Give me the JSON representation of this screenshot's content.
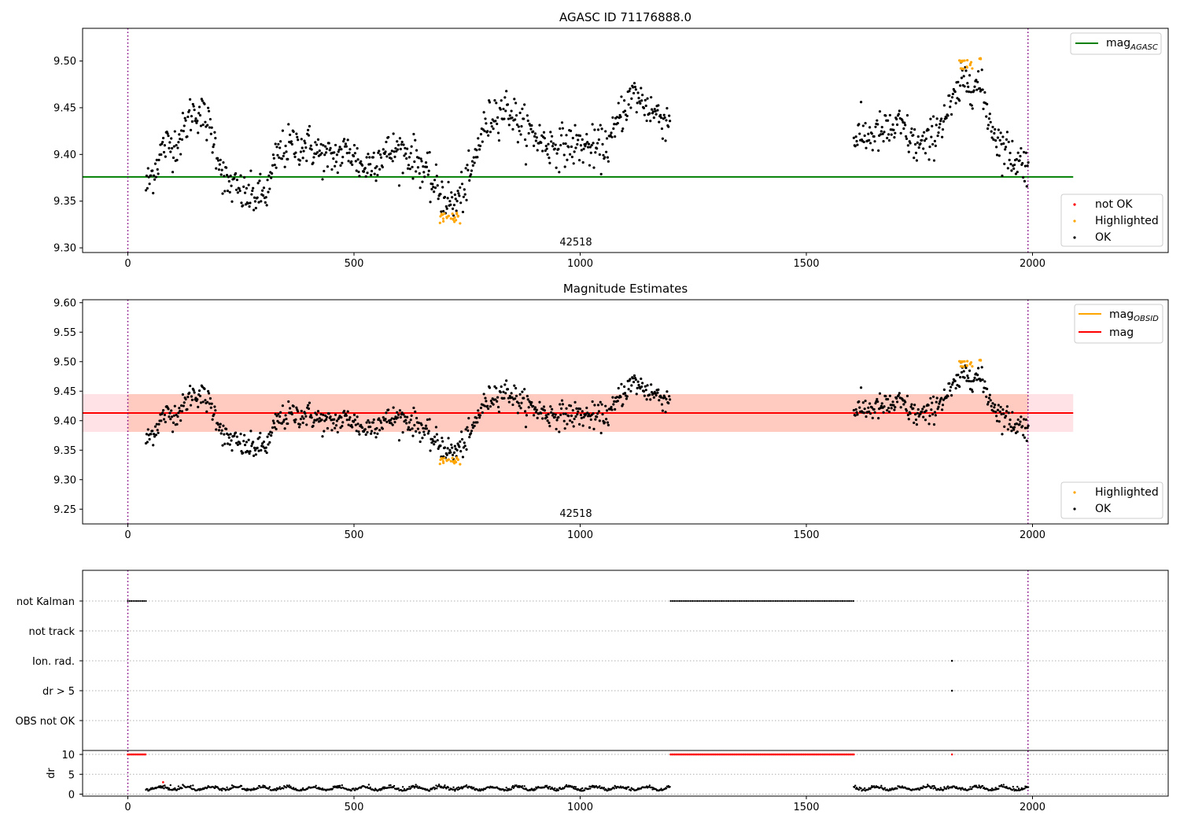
{
  "chart_data": [
    {
      "type": "scatter",
      "title": "AGASC ID 71176888.0",
      "xlim": [
        -100,
        2300
      ],
      "ylim": [
        9.295,
        9.535
      ],
      "xticks": [
        0,
        500,
        1000,
        1500,
        2000
      ],
      "yticks": [
        9.3,
        9.35,
        9.4,
        9.45,
        9.5
      ],
      "vlines": [
        0,
        1990
      ],
      "annotation": {
        "text": "42518",
        "x": 995,
        "y": 9.303
      },
      "hline": {
        "name": "mag",
        "subscript": "AGASC",
        "y": 9.376,
        "x": [
          -100,
          2090
        ],
        "color": "#008000"
      },
      "series": [
        {
          "name": "not OK",
          "color": "#ff0000",
          "points": []
        },
        {
          "name": "Highlighted",
          "color": "#ffa500",
          "ranges": [
            [
              690,
              735,
              9.325,
              9.338
            ],
            [
              1838,
              1870,
              9.49,
              9.507
            ],
            [
              1882,
              1886,
              9.502,
              9.504
            ]
          ]
        },
        {
          "name": "OK",
          "color": "#000000",
          "knots": [
            [
              40,
              9.365
            ],
            [
              55,
              9.38
            ],
            [
              80,
              9.41
            ],
            [
              100,
              9.41
            ],
            [
              120,
              9.42
            ],
            [
              140,
              9.445
            ],
            [
              160,
              9.445
            ],
            [
              180,
              9.43
            ],
            [
              200,
              9.4
            ],
            [
              215,
              9.37
            ],
            [
              235,
              9.365
            ],
            [
              260,
              9.355
            ],
            [
              290,
              9.355
            ],
            [
              310,
              9.36
            ],
            [
              330,
              9.4
            ],
            [
              360,
              9.41
            ],
            [
              400,
              9.41
            ],
            [
              440,
              9.395
            ],
            [
              470,
              9.4
            ],
            [
              490,
              9.405
            ],
            [
              520,
              9.385
            ],
            [
              560,
              9.4
            ],
            [
              600,
              9.405
            ],
            [
              640,
              9.395
            ],
            [
              670,
              9.37
            ],
            [
              690,
              9.36
            ],
            [
              720,
              9.345
            ],
            [
              740,
              9.36
            ],
            [
              760,
              9.38
            ],
            [
              780,
              9.42
            ],
            [
              810,
              9.445
            ],
            [
              840,
              9.45
            ],
            [
              870,
              9.43
            ],
            [
              900,
              9.42
            ],
            [
              930,
              9.41
            ],
            [
              960,
              9.41
            ],
            [
              1000,
              9.41
            ],
            [
              1040,
              9.405
            ],
            [
              1070,
              9.415
            ],
            [
              1090,
              9.445
            ],
            [
              1120,
              9.465
            ],
            [
              1150,
              9.45
            ],
            [
              1180,
              9.44
            ],
            [
              1200,
              9.435
            ]
          ],
          "knots2": [
            [
              1605,
              9.42
            ],
            [
              1640,
              9.42
            ],
            [
              1680,
              9.425
            ],
            [
              1710,
              9.43
            ],
            [
              1740,
              9.41
            ],
            [
              1770,
              9.41
            ],
            [
              1790,
              9.43
            ],
            [
              1820,
              9.45
            ],
            [
              1850,
              9.48
            ],
            [
              1880,
              9.475
            ],
            [
              1895,
              9.455
            ],
            [
              1910,
              9.43
            ],
            [
              1930,
              9.41
            ],
            [
              1960,
              9.395
            ],
            [
              1990,
              9.39
            ]
          ]
        }
      ]
    },
    {
      "type": "scatter",
      "title": "Magnitude Estimates",
      "xlim": [
        -100,
        2300
      ],
      "ylim": [
        9.225,
        9.605
      ],
      "xticks": [
        0,
        500,
        1000,
        1500,
        2000
      ],
      "yticks": [
        9.25,
        9.3,
        9.35,
        9.4,
        9.45,
        9.5,
        9.55,
        9.6
      ],
      "vlines": [
        0,
        1990
      ],
      "annotation": {
        "text": "42518",
        "x": 995,
        "y": 9.237
      },
      "band": {
        "y": [
          9.381,
          9.445
        ],
        "x": [
          -100,
          2090
        ]
      },
      "hline_obsid": {
        "name": "mag",
        "subscript": "OBSID",
        "y": 9.413,
        "x": [
          0,
          1990
        ],
        "color": "#ffa500"
      },
      "hline_mag": {
        "name": "mag",
        "y": 9.413,
        "x": [
          -100,
          2090
        ],
        "color": "#ff0000"
      },
      "series": [
        {
          "name": "Highlighted",
          "color": "#ffa500"
        },
        {
          "name": "OK",
          "color": "#000000"
        }
      ]
    },
    {
      "type": "scatter",
      "title": "",
      "xlim": [
        -100,
        2300
      ],
      "categories": [
        "not Kalman",
        "not track",
        "Ion. rad.",
        "dr > 5",
        "OBS not OK"
      ],
      "flags": {
        "not Kalman": [
          [
            0,
            40
          ],
          [
            1200,
            1605
          ]
        ],
        "Ion. rad.": [
          1822
        ],
        "dr > 5": [
          1822
        ]
      },
      "dr_panel": {
        "ylabel": "dr",
        "yticks": [
          0,
          5,
          10
        ],
        "ylim": [
          -0.5,
          11
        ],
        "high_ranges": [
          [
            0,
            40
          ],
          [
            1200,
            1605
          ],
          [
            1822,
            1822
          ]
        ]
      },
      "xticks": [
        0,
        500,
        1000,
        1500,
        2000
      ],
      "vlines": [
        0,
        1990
      ]
    }
  ],
  "legends": {
    "top_hline": {
      "base": "mag",
      "sub": "AGASC"
    },
    "top_points": [
      "not OK",
      "Highlighted",
      "OK"
    ],
    "mid_lines": [
      {
        "base": "mag",
        "sub": "OBSID"
      },
      {
        "base": "mag",
        "sub": ""
      }
    ],
    "mid_points": [
      "Highlighted",
      "OK"
    ]
  }
}
